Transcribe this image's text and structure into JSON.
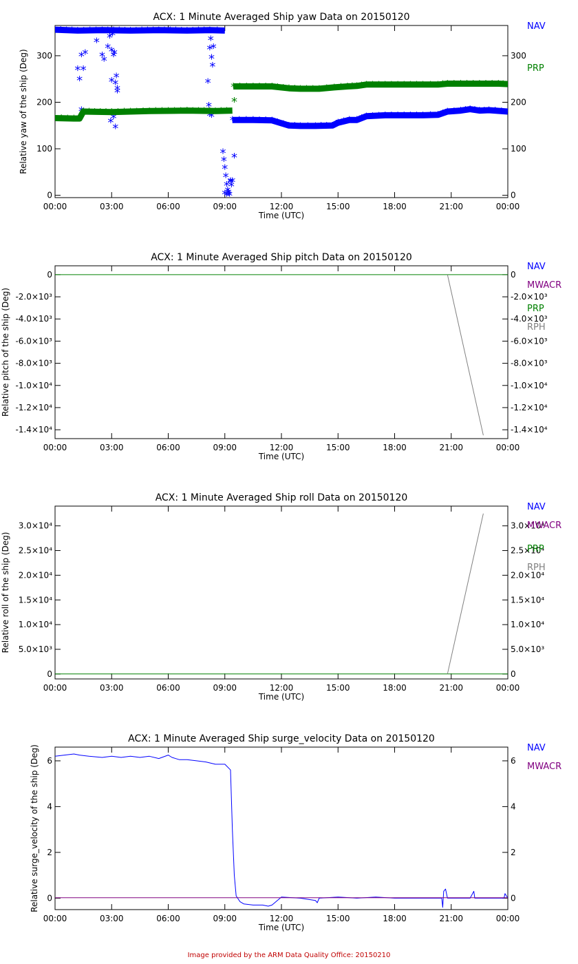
{
  "colors": {
    "NAV": "#0000ff",
    "MWACR": "#800080",
    "PRP": "#008000",
    "RPH": "#808080",
    "axis": "#000000",
    "credit": "#c00000"
  },
  "x_axis": {
    "label": "Time (UTC)",
    "ticks": [
      "00:00",
      "03:00",
      "06:00",
      "09:00",
      "12:00",
      "15:00",
      "18:00",
      "21:00",
      "00:00"
    ]
  },
  "chart_data": [
    {
      "type": "scatter",
      "title": "ACX: 1 Minute Averaged Ship yaw Data on 20150120",
      "xlabel": "Time (UTC)",
      "ylabel": "Relative yaw of the ship (Deg)",
      "xlim": [
        0,
        24
      ],
      "ylim": [
        -5,
        365
      ],
      "yticks": [
        {
          "v": 0,
          "t": "0"
        },
        {
          "v": 100,
          "t": "100"
        },
        {
          "v": 200,
          "t": "200"
        },
        {
          "v": 300,
          "t": "300"
        }
      ],
      "legend": [
        "NAV",
        "PRP"
      ],
      "series": [
        {
          "name": "NAV",
          "segments": [
            {
              "x": [
                0,
                1.2,
                2.5,
                4.0,
                5.5,
                7.0,
                8.2,
                9.0
              ],
              "y": [
                356,
                354,
                355,
                354,
                355,
                354,
                355,
                354
              ]
            },
            {
              "x": [
                9.4,
                10.5,
                11.5,
                12.4,
                13.0,
                13.8,
                14.7,
                15.0,
                15.6,
                16.0,
                16.5,
                17.5,
                18.5,
                19.5,
                20.3,
                20.8,
                21.5,
                22.0,
                22.5,
                23.0,
                24.0
              ],
              "y": [
                162,
                162,
                161,
                150,
                149,
                149,
                150,
                156,
                162,
                162,
                170,
                172,
                172,
                172,
                173,
                180,
                182,
                185,
                182,
                183,
                180
              ]
            }
          ],
          "scatter": {
            "x": [
              1.2,
              1.3,
              1.4,
              1.5,
              2.5,
              2.8,
              2.9,
              3.0,
              3.05,
              3.1,
              3.15,
              3.2,
              3.25,
              3.3,
              2.95,
              3.0,
              3.1,
              3.2,
              3.3,
              1.4,
              1.6,
              2.2,
              2.6,
              8.1,
              8.2,
              8.25,
              8.3,
              8.35,
              8.4,
              8.15,
              8.2,
              8.3,
              8.9,
              8.95,
              9.0,
              9.05,
              9.1,
              9.15,
              9.2,
              9.25,
              9.3,
              9.35,
              9.4,
              9.5,
              9.0,
              9.1,
              9.2,
              9.3
            ],
            "y": [
              270,
              248,
              300,
              270,
              300,
              318,
              340,
              310,
              345,
              300,
              305,
              240,
              255,
              228,
              158,
              245,
              167,
              145,
              222,
              182,
              305,
              330,
              290,
              243,
              315,
              335,
              295,
              278,
              318,
              192,
              172,
              170,
              92,
              75,
              58,
              40,
              22,
              10,
              5,
              0,
              30,
              20,
              30,
              82,
              3,
              0,
              2,
              28
            ]
          }
        },
        {
          "name": "PRP",
          "segments": [
            {
              "x": [
                0,
                1.0,
                1.3,
                1.5,
                3.0,
                5.0,
                7.0,
                8.5,
                9.4
              ],
              "y": [
                166,
                165,
                165,
                180,
                179,
                181,
                182,
                181,
                182
              ]
            },
            {
              "x": [
                9.45,
                10.5,
                11.5,
                12.4,
                13.0,
                14.0,
                14.8,
                15.5,
                16.0,
                16.5,
                17.5,
                18.5,
                19.5,
                20.3,
                20.8,
                21.5,
                22.5,
                23.5,
                24.0
              ],
              "y": [
                234,
                234,
                234,
                230,
                229,
                229,
                232,
                234,
                235,
                238,
                238,
                238,
                238,
                238,
                240,
                240,
                240,
                240,
                239
              ]
            }
          ],
          "scatter": {
            "x": [
              9.5
            ],
            "y": [
              202
            ]
          }
        }
      ]
    },
    {
      "type": "line",
      "title": "ACX: 1 Minute Averaged Ship pitch Data on 20150120",
      "xlabel": "Time (UTC)",
      "ylabel": "Relative pitch of the ship (Deg)",
      "xlim": [
        0,
        24
      ],
      "ylim": [
        -14800,
        800
      ],
      "yticks": [
        {
          "v": 0,
          "t": "0"
        },
        {
          "v": -2000,
          "t": "-2.0×10³"
        },
        {
          "v": -4000,
          "t": "-4.0×10³"
        },
        {
          "v": -6000,
          "t": "-6.0×10³"
        },
        {
          "v": -8000,
          "t": "-8.0×10³"
        },
        {
          "v": -10000,
          "t": "-1.0×10⁴"
        },
        {
          "v": -12000,
          "t": "-1.2×10⁴"
        },
        {
          "v": -14000,
          "t": "-1.4×10⁴"
        }
      ],
      "legend": [
        "NAV",
        "MWACR",
        "PRP",
        "RPH"
      ],
      "series": [
        {
          "name": "PRP",
          "segments": [
            {
              "x": [
                0,
                24
              ],
              "y": [
                0,
                0
              ]
            }
          ]
        },
        {
          "name": "RPH",
          "segments": [
            {
              "x": [
                20.8,
                22.7
              ],
              "y": [
                0,
                -14500
              ]
            }
          ]
        }
      ]
    },
    {
      "type": "line",
      "title": "ACX: 1 Minute Averaged Ship roll Data on 20150120",
      "xlabel": "Time (UTC)",
      "ylabel": "Relative roll of the ship (Deg)",
      "xlim": [
        0,
        24
      ],
      "ylim": [
        -1000,
        34000
      ],
      "yticks": [
        {
          "v": 0,
          "t": "0"
        },
        {
          "v": 5000,
          "t": "5.0×10³"
        },
        {
          "v": 10000,
          "t": "1.0×10⁴"
        },
        {
          "v": 15000,
          "t": "1.5×10⁴"
        },
        {
          "v": 20000,
          "t": "2.0×10⁴"
        },
        {
          "v": 25000,
          "t": "2.5×10⁴"
        },
        {
          "v": 30000,
          "t": "3.0×10⁴"
        }
      ],
      "legend": [
        "NAV",
        "MWACR",
        "PRP",
        "RPH"
      ],
      "series": [
        {
          "name": "PRP",
          "segments": [
            {
              "x": [
                0,
                24
              ],
              "y": [
                0,
                0
              ]
            }
          ]
        },
        {
          "name": "RPH",
          "segments": [
            {
              "x": [
                20.8,
                22.7
              ],
              "y": [
                0,
                32500
              ]
            }
          ]
        }
      ]
    },
    {
      "type": "line",
      "title": "ACX: 1 Minute Averaged Ship surge_velocity Data on 20150120",
      "xlabel": "Time (UTC)",
      "ylabel": "Relative surge_velocity of the ship (Deg)",
      "xlim": [
        0,
        24
      ],
      "ylim": [
        -0.5,
        6.6
      ],
      "yticks": [
        {
          "v": 0,
          "t": "0"
        },
        {
          "v": 2,
          "t": "2"
        },
        {
          "v": 4,
          "t": "4"
        },
        {
          "v": 6,
          "t": "6"
        }
      ],
      "legend": [
        "NAV",
        "MWACR"
      ],
      "series": [
        {
          "name": "NAV",
          "segments": [
            {
              "x": [
                0,
                0.5,
                1.0,
                1.3,
                1.8,
                2.5,
                3.0,
                3.5,
                4.0,
                4.5,
                5.0,
                5.5,
                6.0,
                6.2,
                6.6,
                7.0,
                7.5,
                8.0,
                8.5,
                9.0,
                9.3,
                9.4,
                9.5,
                9.6,
                9.8,
                10.0,
                10.5,
                11.0,
                11.3,
                11.5,
                12.0,
                13.0,
                13.8,
                13.9,
                14.0,
                15.0,
                16.0,
                17.0,
                18.0,
                19.0,
                20.0,
                20.5,
                20.55,
                20.6,
                20.7,
                20.8,
                21.0,
                22.0,
                22.2,
                22.25,
                22.3,
                23.0,
                23.8,
                23.85,
                24.0
              ],
              "y": [
                6.2,
                6.25,
                6.3,
                6.25,
                6.2,
                6.15,
                6.2,
                6.15,
                6.2,
                6.15,
                6.2,
                6.1,
                6.25,
                6.15,
                6.05,
                6.05,
                6.0,
                5.95,
                5.85,
                5.85,
                5.6,
                3.0,
                1.0,
                0.1,
                -0.15,
                -0.25,
                -0.3,
                -0.3,
                -0.35,
                -0.3,
                0.05,
                0.0,
                -0.1,
                -0.2,
                0.0,
                0.05,
                0.0,
                0.05,
                0.0,
                0.0,
                0.0,
                0.0,
                -0.4,
                0.3,
                0.4,
                0.0,
                0.0,
                0.0,
                0.3,
                0.0,
                0.0,
                0.0,
                0.0,
                0.2,
                0.0
              ]
            }
          ]
        },
        {
          "name": "MWACR",
          "segments": [
            {
              "x": [
                0,
                24
              ],
              "y": [
                0.02,
                0.02
              ]
            }
          ]
        }
      ]
    }
  ],
  "credit": "Image provided by the ARM Data Quality Office: 20150210"
}
